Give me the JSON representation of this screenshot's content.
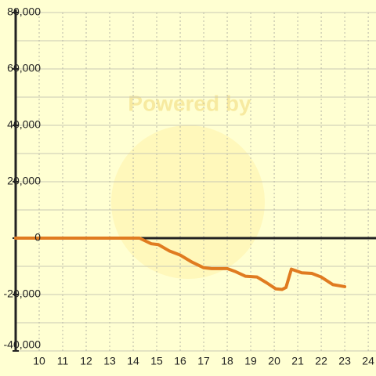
{
  "chart_data": {
    "type": "line",
    "watermark": "Powered by",
    "x": [
      9,
      14.27,
      14.77,
      15.07,
      15.53,
      16,
      16.5,
      17,
      17.33,
      18,
      18.33,
      18.77,
      19.27,
      19.67,
      20.07,
      20.33,
      20.5,
      20.73,
      21.17,
      21.6,
      22,
      22.5,
      23
    ],
    "series": [
      {
        "color": "#e07b20",
        "values": [
          0,
          0,
          -2000,
          -2300,
          -4500,
          -6000,
          -8500,
          -10500,
          -10800,
          -10800,
          -11800,
          -13500,
          -13800,
          -15800,
          -18000,
          -18200,
          -17500,
          -11000,
          -12300,
          -12500,
          -13800,
          -16500,
          -17200
        ]
      }
    ],
    "xlim": [
      9,
      24.33
    ],
    "xticks": [
      10,
      11,
      12,
      13,
      14,
      15,
      16,
      17,
      18,
      19,
      20,
      21,
      22,
      23,
      24
    ],
    "ylim": [
      -40000,
      80000
    ],
    "yticks": [
      {
        "value": -40000,
        "label": "-40,000"
      },
      {
        "value": -20000,
        "label": "-20,000"
      },
      0,
      {
        "value": 20000,
        "label": "20,000"
      },
      {
        "value": 40000,
        "label": "40,000"
      },
      {
        "value": 60000,
        "label": "60,000"
      },
      {
        "value": 80000,
        "label": "80,000"
      }
    ],
    "grid": true
  }
}
